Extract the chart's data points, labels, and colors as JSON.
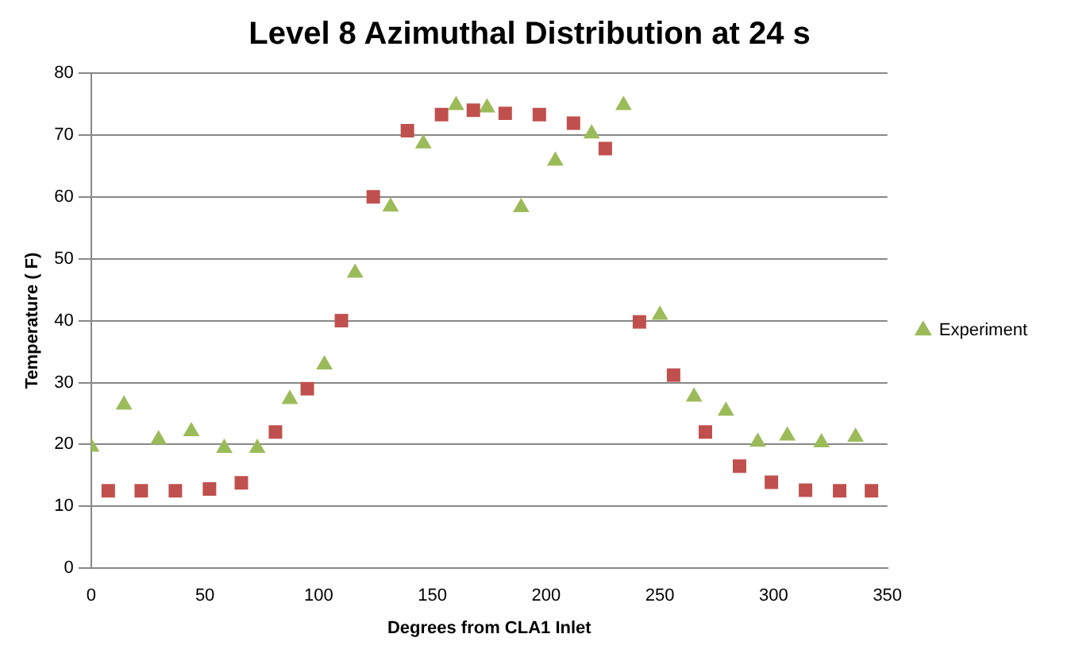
{
  "chart_data": {
    "type": "scatter",
    "title": "Level 8 Azimuthal Distribution at 24 s",
    "xlabel": "Degrees from CLA1 Inlet",
    "ylabel": "Temperature ( F)",
    "xlim": [
      0,
      350
    ],
    "xticks": [
      0,
      50,
      100,
      150,
      200,
      250,
      300,
      350
    ],
    "ylim": [
      0,
      80
    ],
    "yticks": [
      0,
      10,
      20,
      30,
      40,
      50,
      60,
      70,
      80
    ],
    "grid": "y",
    "legend": "right",
    "series": [
      {
        "color": "#c0504d",
        "marker": "square",
        "x": [
          7.5,
          22,
          37,
          52,
          66,
          81,
          95,
          110,
          124,
          139,
          154,
          168,
          182,
          197,
          212,
          226,
          241,
          256,
          270,
          285,
          299,
          314,
          329,
          343
        ],
        "values": [
          12.5,
          12.5,
          12.5,
          12.8,
          13.8,
          22,
          29,
          40,
          60,
          70.7,
          73.3,
          74,
          73.5,
          73.3,
          71.9,
          67.8,
          39.8,
          31.2,
          22,
          16.5,
          13.9,
          12.6,
          12.5,
          12.5
        ]
      },
      {
        "name": "Experiment",
        "color": "#9bbb59",
        "marker": "triangle",
        "x": [
          0,
          14.4,
          29.6,
          44,
          58.5,
          73,
          87.3,
          102.5,
          116,
          131.6,
          146,
          160.4,
          174,
          189,
          204,
          220,
          234,
          250,
          265,
          279,
          293,
          306,
          321,
          336
        ],
        "values": [
          19.6,
          26.4,
          20.8,
          22.1,
          19.4,
          19.4,
          27.3,
          32.9,
          47.7,
          58.4,
          68.6,
          74.8,
          74.4,
          58.3,
          65.8,
          70.2,
          74.8,
          40.9,
          27.7,
          25.4,
          20.4,
          21.4,
          20.3,
          21.2
        ]
      }
    ]
  }
}
